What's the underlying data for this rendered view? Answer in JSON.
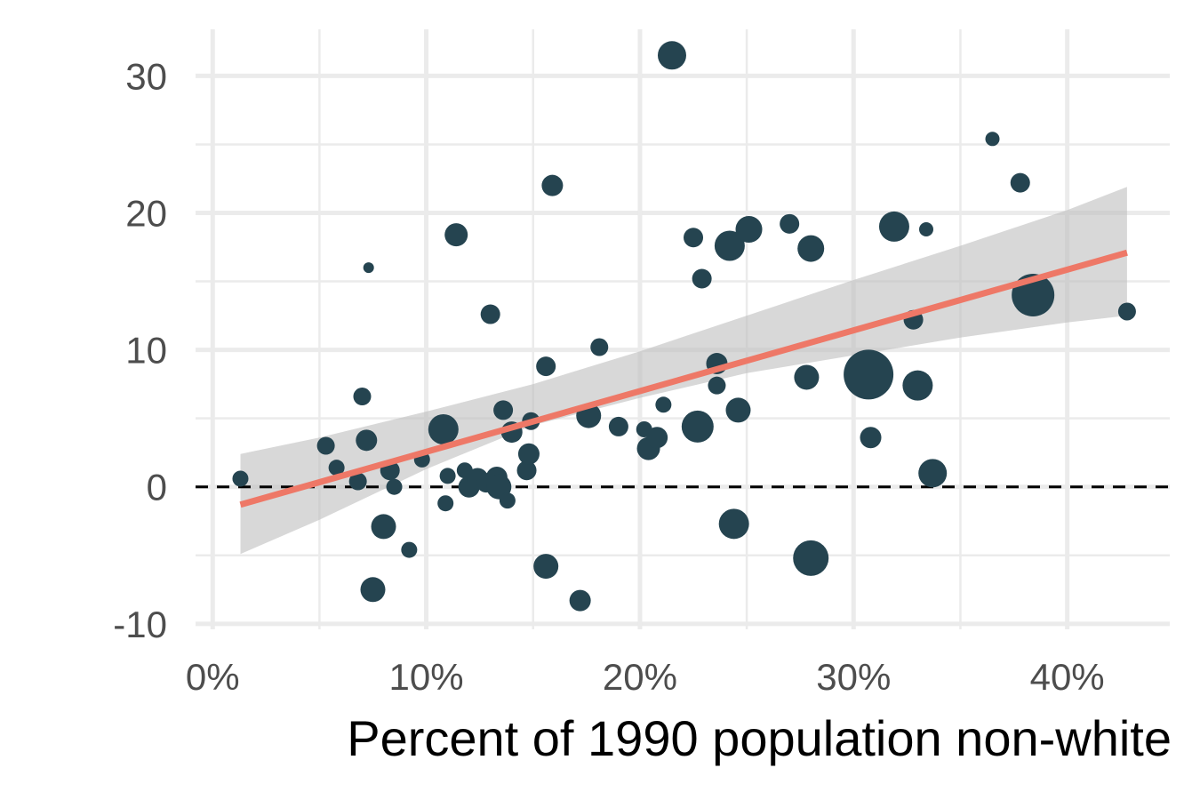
{
  "chart_data": {
    "type": "scatter",
    "title": "",
    "xlabel": "Percent of 1990 population non-white",
    "ylabel": "",
    "xlim": [
      -0.008,
      0.448
    ],
    "ylim": [
      -10.4,
      33.4
    ],
    "x_ticks": [
      0,
      0.1,
      0.2,
      0.3,
      0.4
    ],
    "x_tick_labels": [
      "0%",
      "10%",
      "20%",
      "30%",
      "40%"
    ],
    "x_minor_ticks": [
      0.05,
      0.15,
      0.25,
      0.35
    ],
    "y_ticks": [
      -10,
      0,
      10,
      20,
      30
    ],
    "y_tick_labels": [
      "-10",
      "0",
      "10",
      "20",
      "30"
    ],
    "y_minor_ticks": [
      -5,
      5,
      15,
      25
    ],
    "grid": true,
    "reference_line": {
      "y": 0,
      "style": "dashed",
      "color": "#000000"
    },
    "fit_line": {
      "x": [
        0.013,
        0.428
      ],
      "y": [
        -1.3,
        17.1
      ],
      "color": "#ee7867"
    },
    "confidence_band": {
      "x": [
        0.013,
        0.05,
        0.1,
        0.15,
        0.2,
        0.25,
        0.3,
        0.35,
        0.4,
        0.428
      ],
      "lower": [
        -4.9,
        -2.4,
        1.3,
        4.5,
        6.5,
        8.3,
        9.6,
        10.9,
        12.0,
        12.5
      ],
      "upper": [
        2.4,
        3.6,
        5.5,
        7.5,
        9.9,
        12.5,
        15.1,
        17.6,
        20.2,
        21.9
      ],
      "color": "#bebebe"
    },
    "point_color": "#254450",
    "points": [
      {
        "x": 0.013,
        "y": 0.6,
        "r": 9
      },
      {
        "x": 0.053,
        "y": 3.0,
        "r": 10
      },
      {
        "x": 0.058,
        "y": 1.4,
        "r": 9
      },
      {
        "x": 0.068,
        "y": 0.4,
        "r": 10
      },
      {
        "x": 0.07,
        "y": 6.6,
        "r": 10
      },
      {
        "x": 0.072,
        "y": 3.4,
        "r": 12
      },
      {
        "x": 0.073,
        "y": 16.0,
        "r": 6
      },
      {
        "x": 0.075,
        "y": -7.5,
        "r": 14
      },
      {
        "x": 0.08,
        "y": -2.9,
        "r": 14
      },
      {
        "x": 0.083,
        "y": 1.2,
        "r": 11
      },
      {
        "x": 0.085,
        "y": 0.0,
        "r": 9
      },
      {
        "x": 0.092,
        "y": -4.6,
        "r": 9
      },
      {
        "x": 0.098,
        "y": 2.0,
        "r": 9
      },
      {
        "x": 0.108,
        "y": 4.2,
        "r": 17
      },
      {
        "x": 0.109,
        "y": -1.2,
        "r": 9
      },
      {
        "x": 0.11,
        "y": 0.8,
        "r": 9
      },
      {
        "x": 0.114,
        "y": 18.4,
        "r": 13
      },
      {
        "x": 0.118,
        "y": 1.2,
        "r": 9
      },
      {
        "x": 0.12,
        "y": 0.0,
        "r": 12
      },
      {
        "x": 0.124,
        "y": 0.6,
        "r": 12
      },
      {
        "x": 0.128,
        "y": 0.3,
        "r": 11
      },
      {
        "x": 0.13,
        "y": 12.6,
        "r": 11
      },
      {
        "x": 0.133,
        "y": 0.7,
        "r": 12
      },
      {
        "x": 0.134,
        "y": 0.0,
        "r": 14
      },
      {
        "x": 0.136,
        "y": 5.6,
        "r": 11
      },
      {
        "x": 0.138,
        "y": -1.0,
        "r": 9
      },
      {
        "x": 0.14,
        "y": 4.0,
        "r": 12
      },
      {
        "x": 0.147,
        "y": 1.2,
        "r": 11
      },
      {
        "x": 0.148,
        "y": 2.4,
        "r": 12
      },
      {
        "x": 0.149,
        "y": 4.8,
        "r": 10
      },
      {
        "x": 0.156,
        "y": -5.8,
        "r": 14
      },
      {
        "x": 0.156,
        "y": 8.8,
        "r": 11
      },
      {
        "x": 0.159,
        "y": 22.0,
        "r": 12
      },
      {
        "x": 0.172,
        "y": -8.3,
        "r": 12
      },
      {
        "x": 0.176,
        "y": 5.2,
        "r": 14
      },
      {
        "x": 0.181,
        "y": 10.2,
        "r": 10
      },
      {
        "x": 0.19,
        "y": 4.4,
        "r": 11
      },
      {
        "x": 0.202,
        "y": 4.2,
        "r": 9
      },
      {
        "x": 0.204,
        "y": 2.8,
        "r": 13
      },
      {
        "x": 0.208,
        "y": 3.6,
        "r": 12
      },
      {
        "x": 0.211,
        "y": 6.0,
        "r": 9
      },
      {
        "x": 0.215,
        "y": 31.5,
        "r": 16
      },
      {
        "x": 0.225,
        "y": 18.2,
        "r": 11
      },
      {
        "x": 0.227,
        "y": 4.4,
        "r": 18
      },
      {
        "x": 0.229,
        "y": 15.2,
        "r": 11
      },
      {
        "x": 0.236,
        "y": 9.0,
        "r": 12
      },
      {
        "x": 0.236,
        "y": 7.4,
        "r": 10
      },
      {
        "x": 0.242,
        "y": 17.6,
        "r": 17
      },
      {
        "x": 0.244,
        "y": -2.7,
        "r": 17
      },
      {
        "x": 0.246,
        "y": 5.6,
        "r": 14
      },
      {
        "x": 0.251,
        "y": 18.8,
        "r": 15
      },
      {
        "x": 0.27,
        "y": 19.2,
        "r": 11
      },
      {
        "x": 0.278,
        "y": 8.0,
        "r": 14
      },
      {
        "x": 0.28,
        "y": 17.4,
        "r": 15
      },
      {
        "x": 0.28,
        "y": -5.2,
        "r": 20
      },
      {
        "x": 0.307,
        "y": 8.2,
        "r": 28
      },
      {
        "x": 0.308,
        "y": 3.6,
        "r": 12
      },
      {
        "x": 0.319,
        "y": 19.0,
        "r": 17
      },
      {
        "x": 0.328,
        "y": 12.2,
        "r": 11
      },
      {
        "x": 0.33,
        "y": 7.4,
        "r": 17
      },
      {
        "x": 0.334,
        "y": 18.8,
        "r": 8
      },
      {
        "x": 0.337,
        "y": 1.0,
        "r": 16
      },
      {
        "x": 0.365,
        "y": 25.4,
        "r": 8
      },
      {
        "x": 0.378,
        "y": 22.2,
        "r": 11
      },
      {
        "x": 0.384,
        "y": 14.0,
        "r": 24
      },
      {
        "x": 0.428,
        "y": 12.8,
        "r": 10
      }
    ]
  }
}
